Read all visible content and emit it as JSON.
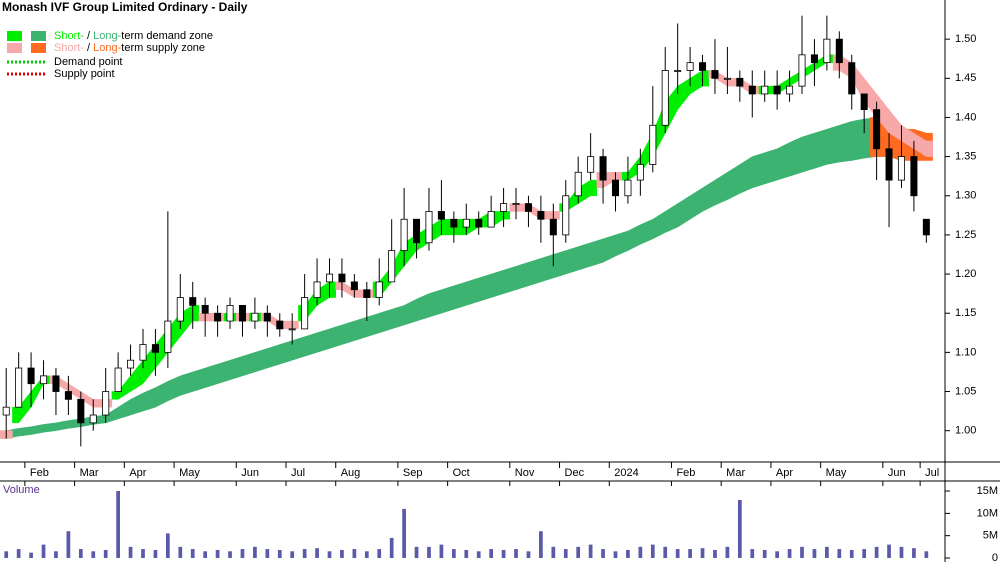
{
  "chart_data": {
    "type": "candlestick",
    "title": "Monash IVF Group Limited Ordinary - Daily",
    "categories": [
      null,
      null,
      "Feb",
      null,
      null,
      null,
      "Mar",
      null,
      null,
      null,
      "Apr",
      null,
      null,
      null,
      "May",
      null,
      null,
      null,
      null,
      "Jun",
      null,
      null,
      null,
      "Jul",
      null,
      null,
      null,
      "Aug",
      null,
      null,
      null,
      null,
      "Sep",
      null,
      null,
      null,
      "Oct",
      null,
      null,
      null,
      null,
      "Nov",
      null,
      null,
      null,
      "Dec",
      null,
      null,
      null,
      "2024",
      null,
      null,
      null,
      null,
      "Feb",
      null,
      null,
      null,
      "Mar",
      null,
      null,
      null,
      "Apr",
      null,
      null,
      null,
      "May",
      null,
      null,
      null,
      null,
      "Jun",
      null,
      null,
      "Jul"
    ],
    "open": [
      1.02,
      1.03,
      1.08,
      1.06,
      1.07,
      1.05,
      1.04,
      1.01,
      1.02,
      1.05,
      1.08,
      1.09,
      1.11,
      1.1,
      1.14,
      1.17,
      1.16,
      1.15,
      1.14,
      1.16,
      1.14,
      1.15,
      1.14,
      1.13,
      1.13,
      1.17,
      1.19,
      1.2,
      1.19,
      1.18,
      1.17,
      1.19,
      1.23,
      1.27,
      1.24,
      1.28,
      1.27,
      1.26,
      1.27,
      1.26,
      1.28,
      1.29,
      1.29,
      1.28,
      1.27,
      1.25,
      1.3,
      1.33,
      1.35,
      1.32,
      1.3,
      1.32,
      1.34,
      1.39,
      1.46,
      1.46,
      1.47,
      1.46,
      1.45,
      1.45,
      1.44,
      1.43,
      1.44,
      1.43,
      1.44,
      1.48,
      1.47,
      1.5,
      1.47,
      1.43,
      1.41,
      1.36,
      1.32,
      1.35,
      1.27
    ],
    "high": [
      1.08,
      1.1,
      1.1,
      1.09,
      1.08,
      1.07,
      1.05,
      1.04,
      1.08,
      1.1,
      1.11,
      1.13,
      1.13,
      1.28,
      1.2,
      1.19,
      1.17,
      1.16,
      1.17,
      1.16,
      1.17,
      1.16,
      1.15,
      1.15,
      1.2,
      1.22,
      1.22,
      1.22,
      1.2,
      1.19,
      1.22,
      1.27,
      1.31,
      1.27,
      1.31,
      1.32,
      1.28,
      1.29,
      1.28,
      1.3,
      1.31,
      1.31,
      1.3,
      1.3,
      1.29,
      1.32,
      1.35,
      1.38,
      1.36,
      1.33,
      1.35,
      1.36,
      1.44,
      1.49,
      1.52,
      1.49,
      1.48,
      1.5,
      1.49,
      1.46,
      1.46,
      1.46,
      1.46,
      1.46,
      1.53,
      1.5,
      1.53,
      1.51,
      1.48,
      1.43,
      1.42,
      1.38,
      1.39,
      1.37,
      1.27
    ],
    "low": [
      0.99,
      1.03,
      1.03,
      1.04,
      1.02,
      1.02,
      0.98,
      1.0,
      1.01,
      1.05,
      1.07,
      1.08,
      1.07,
      1.08,
      1.13,
      1.13,
      1.12,
      1.12,
      1.13,
      1.12,
      1.13,
      1.12,
      1.12,
      1.11,
      1.13,
      1.16,
      1.17,
      1.17,
      1.17,
      1.14,
      1.16,
      1.19,
      1.21,
      1.22,
      1.23,
      1.25,
      1.24,
      1.25,
      1.25,
      1.26,
      1.26,
      1.27,
      1.26,
      1.24,
      1.21,
      1.24,
      1.29,
      1.32,
      1.29,
      1.28,
      1.29,
      1.3,
      1.33,
      1.38,
      1.43,
      1.44,
      1.44,
      1.43,
      1.43,
      1.42,
      1.4,
      1.42,
      1.41,
      1.42,
      1.43,
      1.44,
      1.46,
      1.45,
      1.41,
      1.38,
      1.32,
      1.26,
      1.31,
      1.28,
      1.24
    ],
    "close": [
      1.03,
      1.08,
      1.06,
      1.07,
      1.05,
      1.04,
      1.01,
      1.02,
      1.05,
      1.08,
      1.09,
      1.11,
      1.1,
      1.14,
      1.17,
      1.16,
      1.15,
      1.14,
      1.16,
      1.14,
      1.15,
      1.14,
      1.13,
      1.13,
      1.17,
      1.19,
      1.2,
      1.19,
      1.18,
      1.17,
      1.19,
      1.23,
      1.27,
      1.24,
      1.28,
      1.27,
      1.26,
      1.27,
      1.26,
      1.28,
      1.29,
      1.29,
      1.28,
      1.27,
      1.25,
      1.3,
      1.33,
      1.35,
      1.32,
      1.3,
      1.32,
      1.34,
      1.39,
      1.46,
      1.46,
      1.47,
      1.46,
      1.45,
      1.45,
      1.44,
      1.43,
      1.44,
      1.43,
      1.44,
      1.48,
      1.47,
      1.5,
      1.47,
      1.43,
      1.41,
      1.36,
      1.32,
      1.35,
      1.3,
      1.25
    ],
    "up_color": "#ffffff",
    "down_color": "#000000",
    "bands": [
      {
        "color": "#00ee00",
        "upper": [
          null,
          1.03,
          1.05,
          1.07,
          null,
          null,
          null,
          null,
          null,
          1.05,
          1.07,
          1.09,
          1.11,
          1.13,
          1.15,
          1.16,
          null,
          null,
          1.15,
          null,
          1.15,
          null,
          null,
          null,
          1.16,
          1.18,
          1.19,
          null,
          null,
          null,
          1.19,
          1.21,
          1.24,
          1.25,
          1.26,
          1.27,
          1.27,
          1.27,
          1.27,
          1.28,
          1.28,
          null,
          null,
          null,
          null,
          1.29,
          1.31,
          1.32,
          null,
          null,
          1.33,
          1.35,
          1.38,
          1.42,
          1.44,
          1.45,
          1.46,
          null,
          null,
          null,
          null,
          1.44,
          1.44,
          1.45,
          1.46,
          1.47,
          1.48,
          null,
          null,
          null,
          null,
          null,
          null,
          null,
          null
        ],
        "lower": [
          null,
          1.01,
          1.03,
          1.06,
          null,
          null,
          null,
          null,
          null,
          1.04,
          1.05,
          1.06,
          1.08,
          1.1,
          1.12,
          1.14,
          null,
          null,
          1.14,
          null,
          1.14,
          null,
          null,
          null,
          1.14,
          1.16,
          1.17,
          null,
          null,
          null,
          1.17,
          1.19,
          1.21,
          1.23,
          1.24,
          1.25,
          1.25,
          1.25,
          1.26,
          1.26,
          1.27,
          null,
          null,
          null,
          null,
          1.28,
          1.29,
          1.3,
          null,
          null,
          1.32,
          1.33,
          1.35,
          1.38,
          1.41,
          1.43,
          1.44,
          null,
          null,
          null,
          null,
          1.43,
          1.43,
          1.44,
          1.45,
          1.46,
          1.47,
          null,
          null,
          null,
          null,
          null,
          null,
          null,
          null
        ]
      },
      {
        "color": "#3cb371",
        "upper": [
          1,
          1.003,
          1.005,
          1.008,
          1.01,
          1.013,
          1.015,
          1.018,
          1.02,
          1.03,
          1.04,
          1.048,
          1.055,
          1.063,
          1.07,
          1.075,
          1.08,
          1.085,
          1.09,
          1.095,
          1.1,
          1.105,
          1.11,
          1.115,
          1.12,
          1.125,
          1.13,
          1.135,
          1.14,
          1.145,
          1.15,
          1.155,
          1.16,
          1.168,
          1.175,
          1.18,
          1.185,
          1.19,
          1.195,
          1.2,
          1.205,
          1.21,
          1.215,
          1.22,
          1.225,
          1.23,
          1.235,
          1.24,
          1.245,
          1.25,
          1.255,
          1.263,
          1.27,
          1.28,
          1.29,
          1.3,
          1.31,
          1.32,
          1.33,
          1.34,
          1.35,
          1.355,
          1.36,
          1.368,
          1.375,
          1.38,
          1.385,
          1.39,
          1.395,
          1.398,
          1.4,
          null,
          null,
          null,
          null
        ],
        "lower": [
          0.99,
          0.993,
          0.995,
          0.998,
          1,
          1.003,
          1.005,
          1.008,
          1.01,
          1.015,
          1.02,
          1.025,
          1.03,
          1.038,
          1.045,
          1.05,
          1.055,
          1.06,
          1.065,
          1.07,
          1.075,
          1.08,
          1.085,
          1.09,
          1.095,
          1.1,
          1.105,
          1.11,
          1.115,
          1.12,
          1.125,
          1.13,
          1.135,
          1.14,
          1.145,
          1.15,
          1.155,
          1.16,
          1.165,
          1.17,
          1.175,
          1.18,
          1.185,
          1.19,
          1.195,
          1.2,
          1.205,
          1.21,
          1.215,
          1.223,
          1.23,
          1.238,
          1.245,
          1.253,
          1.26,
          1.27,
          1.28,
          1.288,
          1.295,
          1.303,
          1.31,
          1.315,
          1.32,
          1.325,
          1.33,
          1.335,
          1.34,
          1.343,
          1.345,
          1.348,
          1.35,
          null,
          null,
          null,
          null
        ]
      },
      {
        "color": "#f7a8a8",
        "upper": [
          1.0,
          null,
          null,
          null,
          1.07,
          1.06,
          1.05,
          1.04,
          1.04,
          null,
          null,
          null,
          null,
          null,
          null,
          null,
          1.15,
          1.15,
          null,
          1.15,
          null,
          1.15,
          1.14,
          1.14,
          null,
          null,
          null,
          1.19,
          1.18,
          1.18,
          null,
          null,
          null,
          null,
          null,
          null,
          null,
          null,
          null,
          null,
          null,
          1.29,
          1.29,
          1.28,
          1.28,
          null,
          null,
          null,
          1.33,
          1.33,
          null,
          null,
          null,
          null,
          null,
          null,
          null,
          1.46,
          1.45,
          1.45,
          1.44,
          null,
          null,
          null,
          null,
          null,
          null,
          1.48,
          1.47,
          1.45,
          1.43,
          1.41,
          1.39,
          1.38,
          1.37
        ],
        "lower": [
          0.99,
          null,
          null,
          null,
          1.06,
          1.05,
          1.04,
          1.03,
          1.03,
          null,
          null,
          null,
          null,
          null,
          null,
          null,
          1.14,
          1.14,
          null,
          1.14,
          null,
          1.14,
          1.13,
          1.13,
          null,
          null,
          null,
          1.18,
          1.17,
          1.17,
          null,
          null,
          null,
          null,
          null,
          null,
          null,
          null,
          null,
          null,
          null,
          1.28,
          1.28,
          1.27,
          1.27,
          null,
          null,
          null,
          1.31,
          1.32,
          null,
          null,
          null,
          null,
          null,
          null,
          null,
          1.45,
          1.44,
          1.44,
          1.43,
          null,
          null,
          null,
          null,
          null,
          null,
          1.46,
          1.45,
          1.42,
          1.4,
          1.38,
          1.37,
          1.36,
          1.35
        ]
      },
      {
        "color": "#ff6a20",
        "upper": [
          null,
          null,
          null,
          null,
          null,
          null,
          null,
          null,
          null,
          null,
          null,
          null,
          null,
          null,
          null,
          null,
          null,
          null,
          null,
          null,
          null,
          null,
          null,
          null,
          null,
          null,
          null,
          null,
          null,
          null,
          null,
          null,
          null,
          null,
          null,
          null,
          null,
          null,
          null,
          null,
          null,
          null,
          null,
          null,
          null,
          null,
          null,
          null,
          null,
          null,
          null,
          null,
          null,
          null,
          null,
          null,
          null,
          null,
          null,
          null,
          null,
          null,
          null,
          null,
          null,
          null,
          null,
          null,
          null,
          null,
          1.4,
          1.39,
          1.385,
          1.385,
          1.38
        ],
        "lower": [
          null,
          null,
          null,
          null,
          null,
          null,
          null,
          null,
          null,
          null,
          null,
          null,
          null,
          null,
          null,
          null,
          null,
          null,
          null,
          null,
          null,
          null,
          null,
          null,
          null,
          null,
          null,
          null,
          null,
          null,
          null,
          null,
          null,
          null,
          null,
          null,
          null,
          null,
          null,
          null,
          null,
          null,
          null,
          null,
          null,
          null,
          null,
          null,
          null,
          null,
          null,
          null,
          null,
          null,
          null,
          null,
          null,
          null,
          null,
          null,
          null,
          null,
          null,
          null,
          null,
          null,
          null,
          null,
          null,
          null,
          1.35,
          1.35,
          1.345,
          1.345,
          1.345
        ]
      }
    ],
    "legend": [
      {
        "parts": [
          "Short-",
          " / ",
          "Long-",
          "term demand zone"
        ]
      },
      {
        "parts": [
          "Short-",
          " / ",
          "Long-",
          "term supply zone"
        ]
      }
    ],
    "points": [
      {
        "label": "Demand point",
        "color": "#00cc00"
      },
      {
        "label": "Supply point",
        "color": "#dd0000"
      }
    ],
    "ylim": [
      0.96,
      1.55
    ],
    "yticks": [
      {
        "value": 1,
        "label": "1.00"
      },
      1.05,
      {
        "value": 1.1,
        "label": "1.10"
      },
      1.15,
      {
        "value": 1.2,
        "label": "1.20"
      },
      1.25,
      {
        "value": 1.3,
        "label": "1.30"
      },
      1.35,
      {
        "value": 1.4,
        "label": "1.40"
      },
      1.45,
      {
        "value": 1.5,
        "label": "1.50"
      }
    ],
    "volume": {
      "label": "Volume",
      "color": "#5a5aa8",
      "values": [
        1.5,
        2,
        1.2,
        3,
        1.5,
        6,
        2,
        1.5,
        1.8,
        15,
        2.5,
        2,
        1.8,
        5.5,
        2.5,
        2,
        1.5,
        1.8,
        1.5,
        2,
        2.5,
        2,
        1.8,
        1.5,
        2,
        2.2,
        1.5,
        1.8,
        2,
        1.5,
        2,
        4.5,
        11,
        2.5,
        2.5,
        3,
        2,
        1.8,
        1.5,
        2,
        1.8,
        2,
        1.5,
        6,
        2.5,
        2,
        2.5,
        3,
        2,
        1.5,
        1.8,
        2.5,
        3,
        2.5,
        2,
        2,
        2.2,
        1.8,
        2.5,
        13,
        2,
        1.8,
        1.5,
        2,
        2.5,
        2,
        2.5,
        2,
        1.8,
        2,
        2.5,
        3,
        2.5,
        2.2,
        1.5
      ],
      "ylim": [
        0,
        16.8
      ],
      "yticks": [
        0,
        {
          "value": 5,
          "label": "5M"
        },
        {
          "value": 10,
          "label": "10M"
        },
        {
          "value": 15,
          "label": "15M"
        }
      ]
    }
  }
}
